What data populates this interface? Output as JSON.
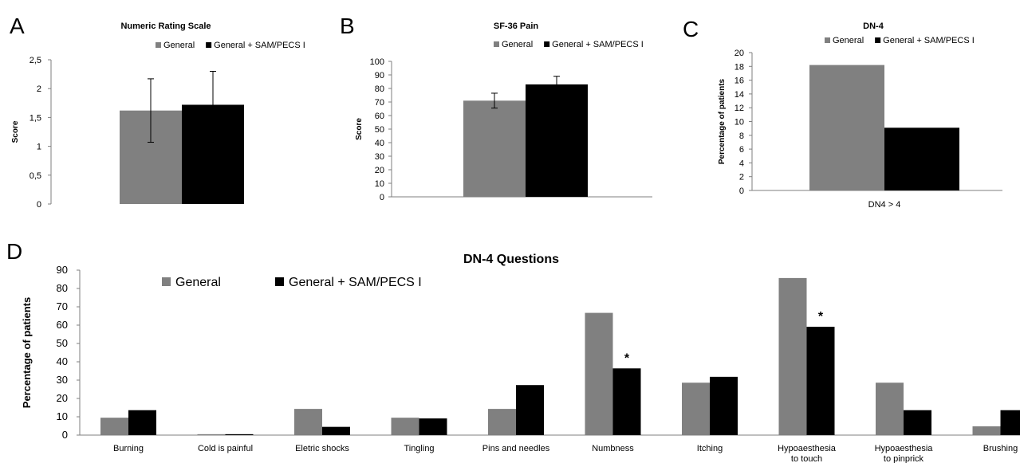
{
  "colors": {
    "general": "#808080",
    "sam": "#000000",
    "axis": "#7f7f7f"
  },
  "chart_data": [
    {
      "id": "A",
      "panel_letter": "A",
      "type": "bar",
      "title": "Numeric Rating Scale",
      "ylabel": "Score",
      "ylim": [
        0,
        2.5
      ],
      "yticks": [
        "0",
        "0,5",
        "1",
        "1,5",
        "2",
        "2,5"
      ],
      "categories": [
        ""
      ],
      "series": [
        {
          "name": "General",
          "values": [
            1.62
          ],
          "error": [
            0.55
          ]
        },
        {
          "name": "General + SAM/PECS I",
          "values": [
            1.72
          ],
          "error": [
            0.58
          ]
        }
      ],
      "legend": "top"
    },
    {
      "id": "B",
      "panel_letter": "B",
      "type": "bar",
      "title": "SF-36 Pain",
      "ylabel": "Score",
      "ylim": [
        0,
        100
      ],
      "yticks": [
        "0",
        "10",
        "20",
        "30",
        "40",
        "50",
        "60",
        "70",
        "80",
        "90",
        "100"
      ],
      "categories": [
        ""
      ],
      "series": [
        {
          "name": "General",
          "values": [
            71
          ],
          "error": [
            5.5
          ]
        },
        {
          "name": "General + SAM/PECS I",
          "values": [
            83
          ],
          "error": [
            6
          ]
        }
      ],
      "legend": "top"
    },
    {
      "id": "C",
      "panel_letter": "C",
      "type": "bar",
      "title": "DN-4",
      "ylabel": "Percentage of patients",
      "ylim": [
        0,
        20
      ],
      "yticks": [
        "0",
        "2",
        "4",
        "6",
        "8",
        "10",
        "12",
        "14",
        "16",
        "18",
        "20"
      ],
      "categories": [
        "DN4 > 4"
      ],
      "series": [
        {
          "name": "General",
          "values": [
            18.2
          ]
        },
        {
          "name": "General + SAM/PECS I",
          "values": [
            9.1
          ]
        }
      ],
      "legend": "top"
    },
    {
      "id": "D",
      "panel_letter": "D",
      "type": "bar",
      "title": "DN-4 Questions",
      "ylabel": "Percentage of patients",
      "ylim": [
        0,
        90
      ],
      "yticks": [
        "0",
        "10",
        "20",
        "30",
        "40",
        "50",
        "60",
        "70",
        "80",
        "90"
      ],
      "categories": [
        "Burning",
        "Cold is painful",
        "Eletric shocks",
        "Tingling",
        "Pins and needles",
        "Numbness",
        "Itching",
        "Hypoaesthesia to touch",
        "Hypoaesthesia to pinprick",
        "Brushing"
      ],
      "series": [
        {
          "name": "General",
          "values": [
            9.5,
            0.5,
            14.3,
            9.5,
            14.3,
            66.7,
            28.6,
            85.7,
            28.6,
            4.8
          ]
        },
        {
          "name": "General + SAM/PECS I",
          "values": [
            13.6,
            0.5,
            4.5,
            9.1,
            27.3,
            36.4,
            31.8,
            59.1,
            13.6,
            13.6
          ]
        }
      ],
      "annotations": [
        {
          "text": "*",
          "category": "Numbness"
        },
        {
          "text": "*",
          "category": "Hypoaesthesia to touch"
        }
      ],
      "legend": "top-left"
    }
  ]
}
